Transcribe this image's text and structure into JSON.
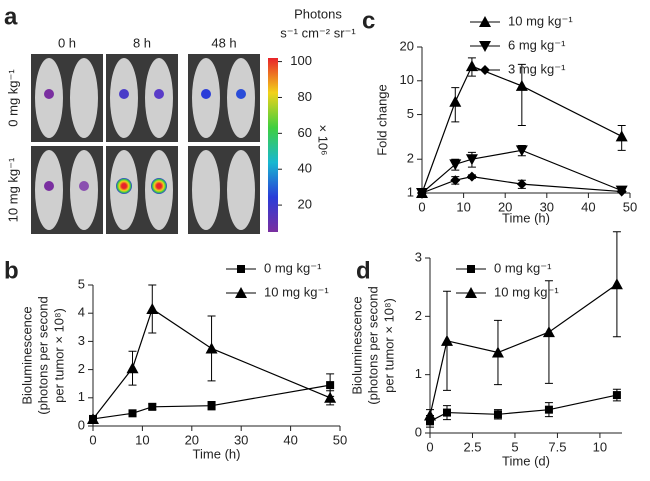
{
  "chart_data": [
    {
      "panel": "a",
      "type": "image",
      "columns": [
        "0 h",
        "8 h",
        "48 h"
      ],
      "rows": [
        "0 mg kg⁻¹",
        "10 mg kg⁻¹"
      ],
      "colorbar": {
        "title": [
          "Photons",
          "s⁻¹ cm⁻² sr⁻¹"
        ],
        "multiplier": "× 10⁶",
        "lim": [
          5,
          102
        ],
        "ticks": [
          20,
          40,
          60,
          80,
          100
        ]
      }
    },
    {
      "panel": "b",
      "type": "line",
      "ylabel": [
        "Bioluminescence",
        "(photons per second",
        "per tumor × 10⁸)"
      ],
      "xlabel": "Time (h)",
      "xlim": [
        0,
        50
      ],
      "xticks": [
        0,
        10,
        20,
        30,
        40,
        50
      ],
      "ylim": [
        0,
        5
      ],
      "yticks": [
        0,
        1,
        2,
        3,
        4,
        5
      ],
      "log_y": false,
      "series": [
        {
          "name": "0 mg kg⁻¹",
          "color": "#000000",
          "marker": "square",
          "x": [
            0,
            8,
            12,
            24,
            48
          ],
          "values": [
            0.25,
            0.45,
            0.68,
            0.72,
            1.45
          ],
          "errors": [
            0.05,
            0.1,
            0.1,
            0.15,
            0.4
          ]
        },
        {
          "name": "10 mg kg⁻¹",
          "color": "#000000",
          "marker": "triangle",
          "x": [
            0,
            8,
            12,
            24,
            48
          ],
          "values": [
            0.25,
            2.05,
            4.15,
            2.75,
            1.0
          ],
          "errors": [
            0.05,
            0.6,
            0.85,
            1.15,
            0.25
          ]
        }
      ]
    },
    {
      "panel": "c",
      "type": "line",
      "ylabel": [
        "Fold change"
      ],
      "xlabel": "Time (h)",
      "xlim": [
        0,
        50
      ],
      "xticks": [
        0,
        10,
        20,
        30,
        40,
        50
      ],
      "ylim": [
        1,
        20
      ],
      "yticks": [
        1,
        2,
        5,
        10,
        20
      ],
      "log_y": true,
      "series": [
        {
          "name": "10 mg kg⁻¹",
          "color": "#000000",
          "marker": "triangle",
          "x": [
            0,
            8,
            12,
            24,
            48
          ],
          "values": [
            1,
            6.5,
            13.5,
            9,
            3.2
          ],
          "errors": [
            0,
            2.2,
            2.5,
            5,
            0.8
          ]
        },
        {
          "name": "6 mg kg⁻¹",
          "color": "#000000",
          "marker": "triangle-down",
          "x": [
            0,
            8,
            12,
            24,
            48
          ],
          "values": [
            1,
            1.8,
            2,
            2.4,
            1.05
          ],
          "errors": [
            0,
            0.2,
            0.3,
            0.25,
            0.05
          ]
        },
        {
          "name": "3 mg kg⁻¹",
          "color": "#000000",
          "marker": "diamond",
          "x": [
            0,
            8,
            12,
            24,
            48
          ],
          "values": [
            1,
            1.3,
            1.4,
            1.2,
            1.03
          ],
          "errors": [
            0,
            0.1,
            0.05,
            0.1,
            0.03
          ]
        }
      ]
    },
    {
      "panel": "d",
      "type": "line",
      "ylabel": [
        "Bioluminescence",
        "(photons per second",
        "per tumor × 10⁸)"
      ],
      "xlabel": "Time (d)",
      "xlim": [
        0,
        11.3
      ],
      "xticks": [
        0,
        2.5,
        5,
        7.5,
        10
      ],
      "ylim": [
        0,
        3
      ],
      "yticks": [
        0,
        1,
        2,
        3
      ],
      "log_y": false,
      "series": [
        {
          "name": "0 mg kg⁻¹",
          "color": "#000000",
          "marker": "square",
          "x": [
            0,
            1,
            4,
            7,
            11
          ],
          "values": [
            0.2,
            0.35,
            0.32,
            0.4,
            0.65
          ],
          "errors": [
            0.1,
            0.12,
            0.08,
            0.12,
            0.1
          ]
        },
        {
          "name": "10 mg kg⁻¹",
          "color": "#000000",
          "marker": "triangle",
          "x": [
            0,
            1,
            4,
            7,
            11
          ],
          "values": [
            0.3,
            1.58,
            1.38,
            1.73,
            2.55
          ],
          "errors": [
            0.1,
            0.85,
            0.55,
            0.88,
            0.9
          ]
        }
      ]
    }
  ]
}
